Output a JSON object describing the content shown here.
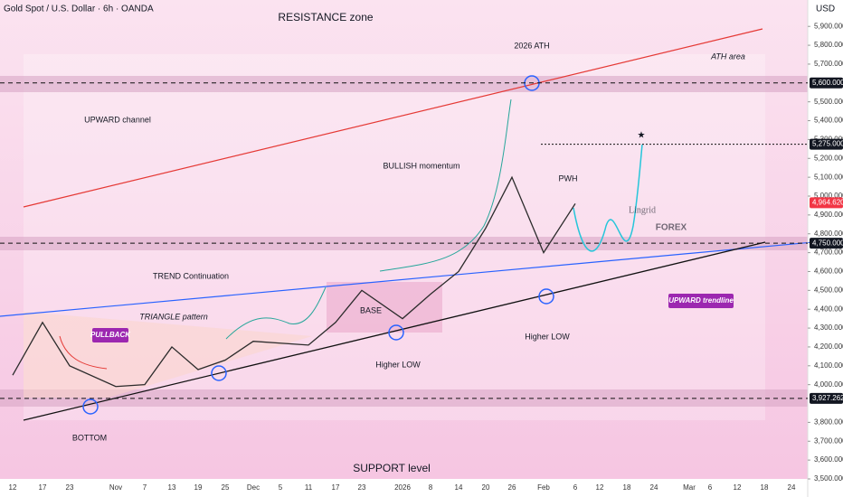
{
  "header": {
    "symbol": "Gold Spot / U.S. Dollar · 6h · OANDA",
    "currency": "USD"
  },
  "watermark": {
    "brand": "Lingrid",
    "sub": "FOREX"
  },
  "chart_data": {
    "type": "line",
    "categories": [
      "12",
      "17",
      "23",
      "Nov",
      "7",
      "13",
      "19",
      "25",
      "Dec",
      "5",
      "11",
      "17",
      "23",
      "2026",
      "8",
      "14",
      "20",
      "26",
      "Feb",
      "6",
      "12",
      "18",
      "24",
      "Mar",
      "6",
      "12",
      "18",
      "24"
    ],
    "series": [
      {
        "name": "Gold Spot / U.S. Dollar",
        "color": "#2b2b2b",
        "values": [
          4050,
          4330,
          4100,
          3990,
          4000,
          4200,
          4080,
          4130,
          4230,
          4220,
          4210,
          4330,
          4500,
          4350,
          4480,
          4600,
          4830,
          5100,
          4700,
          4960,
          null,
          null,
          null,
          null,
          null,
          null,
          null,
          null
        ]
      }
    ],
    "ylim": [
      3500,
      6040
    ],
    "yticks": [
      {
        "value": 3500,
        "label": "3,500.000"
      },
      {
        "value": 3600,
        "label": "3,600.000"
      },
      {
        "value": 3700,
        "label": "3,700.000"
      },
      {
        "value": 3800,
        "label": "3,800.000"
      },
      {
        "value": 4000,
        "label": "4,000.000"
      },
      {
        "value": 4100,
        "label": "4,100.000"
      },
      {
        "value": 4200,
        "label": "4,200.000"
      },
      {
        "value": 4300,
        "label": "4,300.000"
      },
      {
        "value": 4400,
        "label": "4,400.000"
      },
      {
        "value": 4500,
        "label": "4,500.000"
      },
      {
        "value": 4600,
        "label": "4,600.000"
      },
      {
        "value": 4700,
        "label": "4,700.000"
      },
      {
        "value": 4800,
        "label": "4,800.000"
      },
      {
        "value": 4900,
        "label": "4,900.000"
      },
      {
        "value": 5000,
        "label": "5,000.000"
      },
      {
        "value": 5100,
        "label": "5,100.000"
      },
      {
        "value": 5200,
        "label": "5,200.000"
      },
      {
        "value": 5300,
        "label": "5,300.000"
      },
      {
        "value": 5400,
        "label": "5,400.000"
      },
      {
        "value": 5500,
        "label": "5,500.000"
      },
      {
        "value": 5700,
        "label": "5,700.000"
      },
      {
        "value": 5800,
        "label": "5,800.000"
      },
      {
        "value": 5900,
        "label": "5,900.000"
      }
    ],
    "levels": [
      {
        "value": 5600,
        "label": "5,600.000"
      },
      {
        "value": 5275,
        "label": "5,275.000"
      },
      {
        "value": 4964.62,
        "label": "4,964.620"
      },
      {
        "value": 4750,
        "label": "4,750.000"
      },
      {
        "value": 3927.262,
        "label": "3,927.262"
      }
    ],
    "annotations": [
      "RESISTANCE zone",
      "ATH area",
      "2026 ATH",
      "UPWARD channel",
      "BULLISH momentum",
      "PWH",
      "TREND Continuation",
      "TRIANGLE pattern",
      "PULLBACK",
      "BASE",
      "Higher LOW",
      "Higher LOW",
      "BOTTOM",
      "SUPPORT level",
      "UPWARD trendline"
    ]
  }
}
